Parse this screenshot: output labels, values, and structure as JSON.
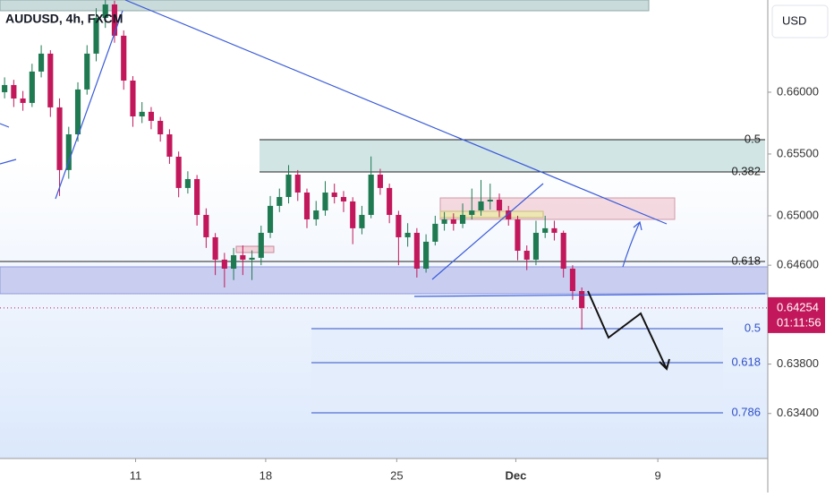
{
  "chart_data": {
    "type": "candlestick",
    "title": "AUDUSD, 4h, FXCM",
    "currency": "USD",
    "up_color": "#1f7a52",
    "down_color": "#c2185b",
    "open": [
      0.66,
      0.66058,
      0.65949,
      0.65913,
      0.66167,
      0.66312,
      0.65877,
      0.6537,
      0.65659,
      0.66022,
      0.66312,
      0.66601,
      0.6671,
      0.66457,
      0.66094,
      0.65804,
      0.65841,
      0.65768,
      0.65659,
      0.65478,
      0.65225,
      0.65297,
      0.65007,
      0.64826,
      0.64645,
      0.64572,
      0.64681,
      0.64645,
      0.6466,
      0.64862,
      0.6508,
      0.65152,
      0.65333,
      0.65188,
      0.64971,
      0.65043,
      0.65188,
      0.65152,
      0.65116,
      0.64899,
      0.65007,
      0.65333,
      0.65225,
      0.65007,
      0.64826,
      0.64862,
      0.64572,
      0.6479,
      0.64935,
      0.64971,
      0.64935,
      0.65007,
      0.65043,
      0.65116,
      0.6513,
      0.65043,
      0.64971,
      0.64717,
      0.64645,
      0.64862,
      0.64899,
      0.64862,
      0.64572,
      0.64391
    ],
    "high": [
      0.6612,
      0.661,
      0.6601,
      0.6623,
      0.6638,
      0.6634,
      0.6595,
      0.6572,
      0.6608,
      0.6638,
      0.6668,
      0.6676,
      0.6674,
      0.665,
      0.6613,
      0.6592,
      0.6588,
      0.658,
      0.657,
      0.6552,
      0.6536,
      0.6533,
      0.6506,
      0.6486,
      0.647,
      0.6474,
      0.6476,
      0.6472,
      0.6492,
      0.6516,
      0.6522,
      0.6541,
      0.6537,
      0.6522,
      0.6512,
      0.6528,
      0.6526,
      0.652,
      0.6515,
      0.6508,
      0.6548,
      0.6538,
      0.6526,
      0.6504,
      0.6494,
      0.649,
      0.6485,
      0.65,
      0.6503,
      0.6502,
      0.651,
      0.6522,
      0.6529,
      0.6526,
      0.6518,
      0.6508,
      0.65,
      0.6476,
      0.6496,
      0.65,
      0.6496,
      0.6488,
      0.646,
      0.6442
    ],
    "low": [
      0.6595,
      0.6588,
      0.6585,
      0.6588,
      0.6612,
      0.658,
      0.6516,
      0.653,
      0.656,
      0.6598,
      0.6625,
      0.6652,
      0.664,
      0.6602,
      0.6572,
      0.6575,
      0.657,
      0.656,
      0.6542,
      0.6515,
      0.6518,
      0.6492,
      0.6474,
      0.6452,
      0.6442,
      0.6448,
      0.6452,
      0.6448,
      0.646,
      0.6482,
      0.6503,
      0.651,
      0.6512,
      0.649,
      0.6492,
      0.65,
      0.651,
      0.6503,
      0.6477,
      0.6485,
      0.6498,
      0.6517,
      0.6494,
      0.646,
      0.6475,
      0.645,
      0.6454,
      0.6476,
      0.6488,
      0.6488,
      0.649,
      0.6497,
      0.65,
      0.6505,
      0.6499,
      0.6492,
      0.6464,
      0.6456,
      0.646,
      0.6482,
      0.648,
      0.645,
      0.6432,
      0.6408
    ],
    "close": [
      0.66058,
      0.65949,
      0.65913,
      0.66167,
      0.66312,
      0.65877,
      0.6537,
      0.65659,
      0.66022,
      0.66312,
      0.66601,
      0.6671,
      0.66457,
      0.66094,
      0.65804,
      0.65841,
      0.65768,
      0.65659,
      0.65478,
      0.65225,
      0.65297,
      0.65007,
      0.64826,
      0.64645,
      0.64572,
      0.64681,
      0.64645,
      0.6466,
      0.64862,
      0.6508,
      0.65152,
      0.65333,
      0.65188,
      0.64971,
      0.65043,
      0.65188,
      0.65152,
      0.65116,
      0.64899,
      0.65007,
      0.65333,
      0.65225,
      0.65007,
      0.64826,
      0.64862,
      0.64572,
      0.6479,
      0.64935,
      0.64971,
      0.64935,
      0.65007,
      0.65043,
      0.65116,
      0.6513,
      0.65043,
      0.64971,
      0.64717,
      0.64645,
      0.64862,
      0.64899,
      0.64862,
      0.64572,
      0.64391,
      0.64254
    ],
    "xlim": [
      -0.5,
      83.3
    ],
    "xticks": [
      {
        "value": 14.3,
        "label": "11"
      },
      {
        "value": 28.5,
        "label": "18"
      },
      {
        "value": 42.8,
        "label": "25"
      },
      {
        "value": 55.8,
        "label": "Dec"
      },
      {
        "value": 71.3,
        "label": "9"
      }
    ],
    "ylim": [
      0.63036,
      0.66746
    ],
    "yticks": [
      {
        "value": 0.66,
        "label": "0.66000"
      },
      {
        "value": 0.655,
        "label": "0.65500"
      },
      {
        "value": 0.65,
        "label": "0.65000"
      },
      {
        "value": 0.646,
        "label": "0.64600"
      },
      {
        "value": 0.638,
        "label": "0.63800"
      },
      {
        "value": 0.634,
        "label": "0.63400"
      }
    ],
    "last_price": 0.64254,
    "countdown": "01:11:56",
    "fib_labels": [
      "0.5",
      "0.382",
      "0.618",
      "0.5",
      "0.618",
      "0.786"
    ]
  }
}
